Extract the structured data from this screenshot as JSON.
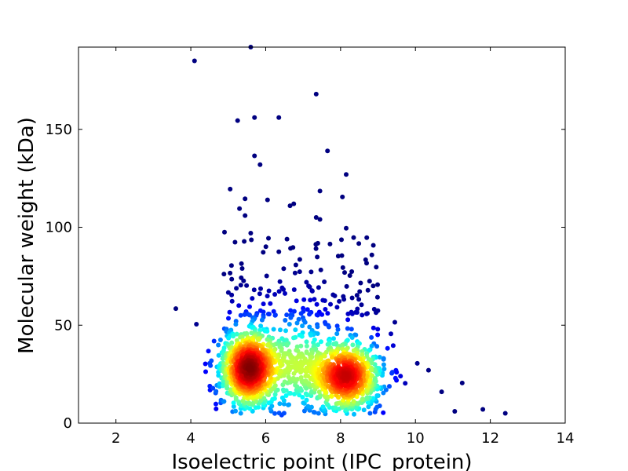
{
  "chart_data": {
    "type": "scatter",
    "title": "",
    "xlabel": "Isoelectric point (IPC_protein)",
    "ylabel": "Molecular weight (kDa)",
    "xlim": [
      1,
      14
    ],
    "ylim": [
      0,
      192
    ],
    "xticks": [
      2,
      4,
      6,
      8,
      10,
      12,
      14
    ],
    "yticks": [
      0,
      50,
      100,
      150
    ],
    "grid": false,
    "legend": "none",
    "color_scale": "jet (point density: blue = low, red = high)",
    "outlier_points": [
      [
        4.1,
        185
      ],
      [
        5.6,
        192
      ],
      [
        7.35,
        168
      ],
      [
        5.7,
        156
      ],
      [
        6.35,
        156
      ],
      [
        5.25,
        154.5
      ],
      [
        7.65,
        139
      ],
      [
        5.7,
        136.5
      ],
      [
        5.85,
        132
      ],
      [
        8.15,
        127
      ],
      [
        5.05,
        119.5
      ],
      [
        7.45,
        118.5
      ],
      [
        8.05,
        115.5
      ],
      [
        5.45,
        114.5
      ],
      [
        6.05,
        114
      ],
      [
        6.75,
        112
      ],
      [
        6.65,
        111
      ],
      [
        5.3,
        109.5
      ],
      [
        5.45,
        106
      ],
      [
        7.35,
        105
      ],
      [
        7.45,
        104
      ],
      [
        8.15,
        99.5
      ],
      [
        4.9,
        97.5
      ],
      [
        5.6,
        97
      ],
      [
        3.6,
        58.5
      ],
      [
        4.15,
        50.5
      ],
      [
        9.45,
        51.5
      ],
      [
        10.05,
        30.5
      ],
      [
        10.35,
        27
      ],
      [
        11.25,
        20.5
      ],
      [
        12.4,
        5
      ],
      [
        11.8,
        7
      ],
      [
        11.05,
        6
      ],
      [
        10.7,
        16
      ],
      [
        9.6,
        24
      ]
    ],
    "clusters": [
      {
        "center_x": 5.55,
        "center_y": 28,
        "sd_x": 0.42,
        "sd_y": 11,
        "count": 900
      },
      {
        "center_x": 8.15,
        "center_y": 24,
        "sd_x": 0.5,
        "sd_y": 10,
        "count": 800
      },
      {
        "center_x": 6.8,
        "center_y": 30,
        "sd_x": 0.55,
        "sd_y": 13,
        "count": 300
      }
    ]
  },
  "colors": {
    "background": "#ffffff",
    "axis": "#000000",
    "low_density": "#00008f",
    "high_density": "#800000"
  }
}
